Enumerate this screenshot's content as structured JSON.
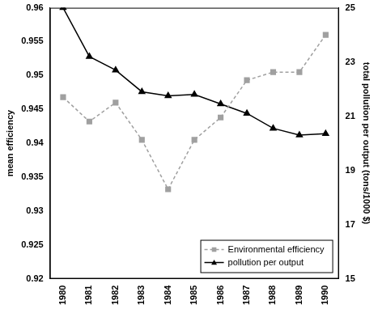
{
  "chart_data": {
    "type": "line",
    "categories": [
      "1980",
      "1981",
      "1982",
      "1983",
      "1984",
      "1985",
      "1986",
      "1987",
      "1988",
      "1989",
      "1990"
    ],
    "y_label": "mean efficiency",
    "y2_label": "total pollution per output (tons/1000 $)",
    "ylim": [
      0.92,
      0.96
    ],
    "yticks": [
      0.92,
      0.925,
      0.93,
      0.935,
      0.94,
      0.945,
      0.95,
      0.955,
      0.96
    ],
    "y2lim": [
      15,
      25
    ],
    "y2ticks": [
      15,
      17,
      19,
      21,
      23,
      25
    ],
    "grid": false,
    "legend": "lower right",
    "series": [
      {
        "name": "Environmental efficiency",
        "color": "#a0a0a0",
        "marker": "square",
        "line_style": "dashed",
        "values": [
          0.9468,
          0.9432,
          0.946,
          0.9405,
          0.9332,
          0.9405,
          0.9438,
          0.9493,
          0.9505,
          0.9505,
          0.956
        ]
      },
      {
        "name": "pollution per output",
        "color": "#000000",
        "marker": "triangle",
        "line_style": "solid",
        "axis": "y2",
        "values": [
          25.0,
          23.2,
          22.7,
          21.9,
          21.75,
          21.8,
          21.45,
          21.1,
          20.55,
          20.3,
          20.35
        ]
      }
    ]
  }
}
